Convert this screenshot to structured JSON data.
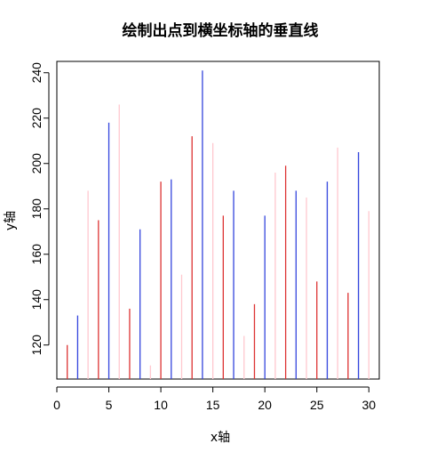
{
  "chart_data": {
    "type": "bar",
    "title": "绘制出点到横坐标轴的垂直线",
    "xlabel": "x轴",
    "ylabel": "y轴",
    "xlim": [
      0,
      31
    ],
    "ylim": [
      105,
      245
    ],
    "x_ticks": [
      0,
      5,
      10,
      15,
      20,
      25,
      30
    ],
    "y_ticks": [
      120,
      140,
      160,
      180,
      200,
      220,
      240
    ],
    "grid": false,
    "legend": "none",
    "baseline": 105,
    "colors": {
      "red": "#dd3333",
      "blue": "#3344dd",
      "pink": "#ffc8cf"
    },
    "series": [
      {
        "x": [
          1,
          4,
          7,
          10,
          13,
          16,
          19,
          22,
          25,
          28
        ],
        "values": [
          120,
          175,
          136,
          192,
          212,
          177,
          138,
          199,
          148,
          143
        ],
        "color": "red"
      },
      {
        "x": [
          2,
          5,
          8,
          11,
          14,
          17,
          20,
          23,
          26,
          29
        ],
        "values": [
          133,
          218,
          171,
          193,
          241,
          188,
          177,
          188,
          192,
          205
        ],
        "color": "blue"
      },
      {
        "x": [
          3,
          6,
          9,
          12,
          15,
          18,
          21,
          24,
          27,
          30
        ],
        "values": [
          188,
          226,
          111,
          151,
          209,
          124,
          196,
          185,
          207,
          179
        ],
        "color": "pink"
      }
    ]
  }
}
